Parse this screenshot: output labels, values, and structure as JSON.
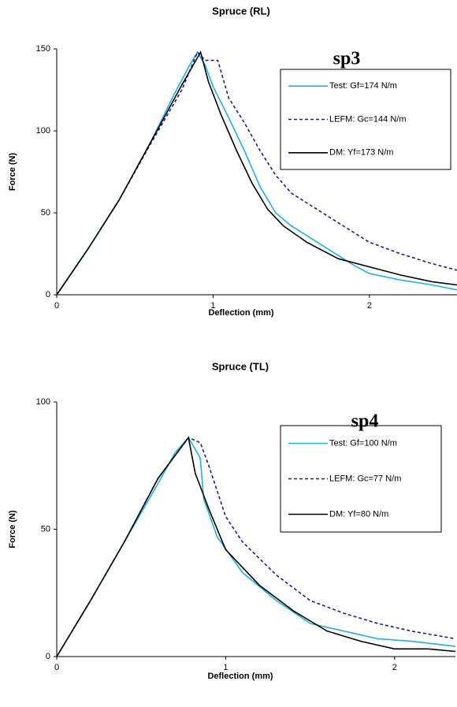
{
  "chart_data": [
    {
      "type": "line",
      "title": "Spruce (RL)",
      "annotation": "sp3",
      "x_label": "Deflection (mm)",
      "y_label": "Force (N)",
      "xlim": [
        0,
        2.56
      ],
      "ylim": [
        0,
        150
      ],
      "xticks": [
        0,
        1,
        2
      ],
      "yticks": [
        0,
        50,
        100,
        150
      ],
      "series": [
        {
          "name": "Test: Gf=174 N/m",
          "color": "#1ab2e8",
          "dash": false,
          "x": [
            0,
            0.2,
            0.4,
            0.6,
            0.75,
            0.85,
            0.9,
            0.95,
            1.0,
            1.1,
            1.2,
            1.3,
            1.4,
            1.5,
            1.7,
            1.9,
            2.0,
            2.2,
            2.4,
            2.56
          ],
          "values": [
            0,
            28,
            58,
            93,
            122,
            140,
            148,
            140,
            127,
            108,
            88,
            66,
            50,
            42,
            30,
            18,
            13,
            9,
            6,
            3
          ]
        },
        {
          "name": "LEFM: Gc=144 N/m",
          "color": "#1c1c8c",
          "dash": true,
          "x": [
            0,
            0.2,
            0.4,
            0.6,
            0.8,
            0.9,
            0.95,
            1.03,
            1.1,
            1.2,
            1.3,
            1.4,
            1.5,
            1.7,
            1.9,
            2.0,
            2.2,
            2.4,
            2.56
          ],
          "values": [
            0,
            28,
            58,
            92,
            125,
            148,
            143,
            143,
            120,
            105,
            88,
            73,
            62,
            50,
            38,
            32,
            25,
            19,
            15
          ]
        },
        {
          "name": "DM: Yf=173 N/m",
          "color": "#000000",
          "dash": false,
          "x": [
            0,
            0.2,
            0.4,
            0.6,
            0.8,
            0.92,
            0.97,
            1.05,
            1.15,
            1.25,
            1.35,
            1.45,
            1.6,
            1.8,
            2.0,
            2.2,
            2.4,
            2.56
          ],
          "values": [
            0,
            28,
            58,
            93,
            128,
            148,
            130,
            110,
            88,
            68,
            52,
            42,
            32,
            22,
            17,
            12,
            8,
            6
          ]
        }
      ]
    },
    {
      "type": "line",
      "title": "Spruce (TL)",
      "annotation": "sp4",
      "x_label": "Deflection (mm)",
      "y_label": "Force (N)",
      "xlim": [
        0,
        2.36
      ],
      "ylim": [
        0,
        100
      ],
      "xticks": [
        0,
        1,
        2
      ],
      "yticks": [
        0,
        50,
        100
      ],
      "series": [
        {
          "name": "Test: Gf=100 N/m",
          "color": "#1ab2e8",
          "dash": false,
          "x": [
            0,
            0.2,
            0.4,
            0.6,
            0.7,
            0.78,
            0.85,
            0.87,
            0.95,
            1.1,
            1.3,
            1.5,
            1.7,
            1.9,
            2.1,
            2.36
          ],
          "values": [
            0,
            22,
            45,
            68,
            80,
            86,
            78,
            62,
            47,
            33,
            22,
            13,
            10,
            7,
            6,
            4
          ]
        },
        {
          "name": "LEFM: Gc=77 N/m",
          "color": "#1c1c8c",
          "dash": true,
          "x": [
            0,
            0.2,
            0.4,
            0.6,
            0.78,
            0.85,
            0.9,
            1.0,
            1.1,
            1.3,
            1.5,
            1.7,
            1.9,
            2.1,
            2.36
          ],
          "values": [
            0,
            22,
            45,
            70,
            86,
            84,
            75,
            55,
            45,
            32,
            22,
            17,
            13,
            10,
            7
          ]
        },
        {
          "name": "DM: Yf=80 N/m",
          "color": "#000000",
          "dash": false,
          "x": [
            0,
            0.2,
            0.4,
            0.6,
            0.78,
            0.82,
            0.9,
            1.0,
            1.2,
            1.4,
            1.6,
            1.8,
            2.0,
            2.2,
            2.36
          ],
          "values": [
            0,
            22,
            45,
            70,
            86,
            72,
            58,
            42,
            28,
            18,
            10,
            6,
            3,
            3,
            2
          ]
        }
      ]
    }
  ]
}
